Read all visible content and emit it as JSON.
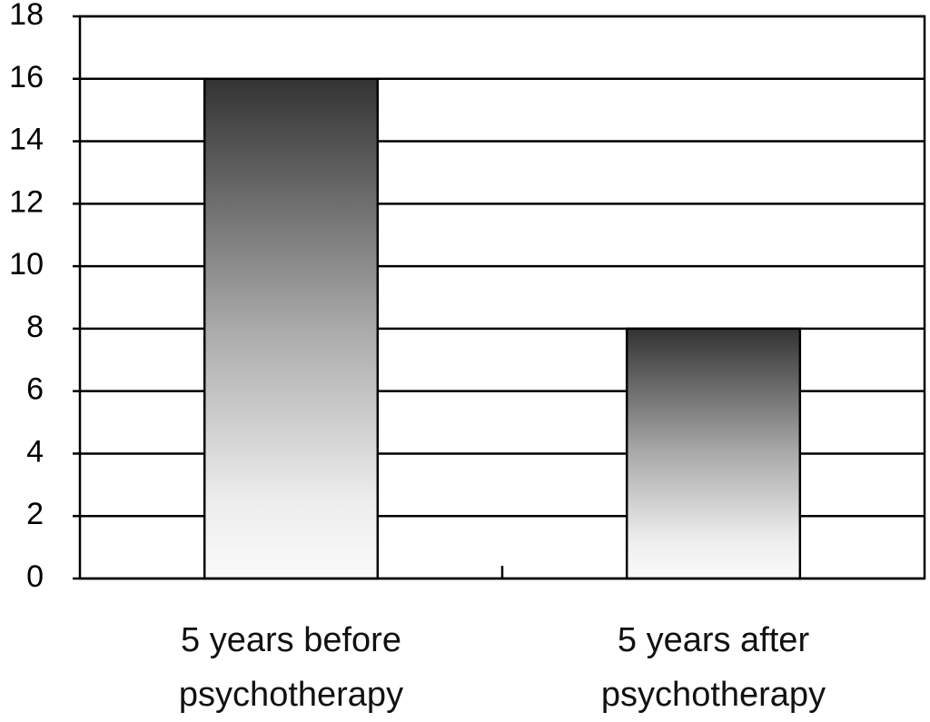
{
  "chart_data": {
    "type": "bar",
    "categories": [
      "5 years before psychotherapy",
      "5 years after psychotherapy"
    ],
    "values": [
      16,
      8
    ],
    "ylim": [
      0,
      18
    ],
    "yticks": [
      0,
      2,
      4,
      6,
      8,
      10,
      12,
      14,
      16,
      18
    ],
    "grid": true
  }
}
